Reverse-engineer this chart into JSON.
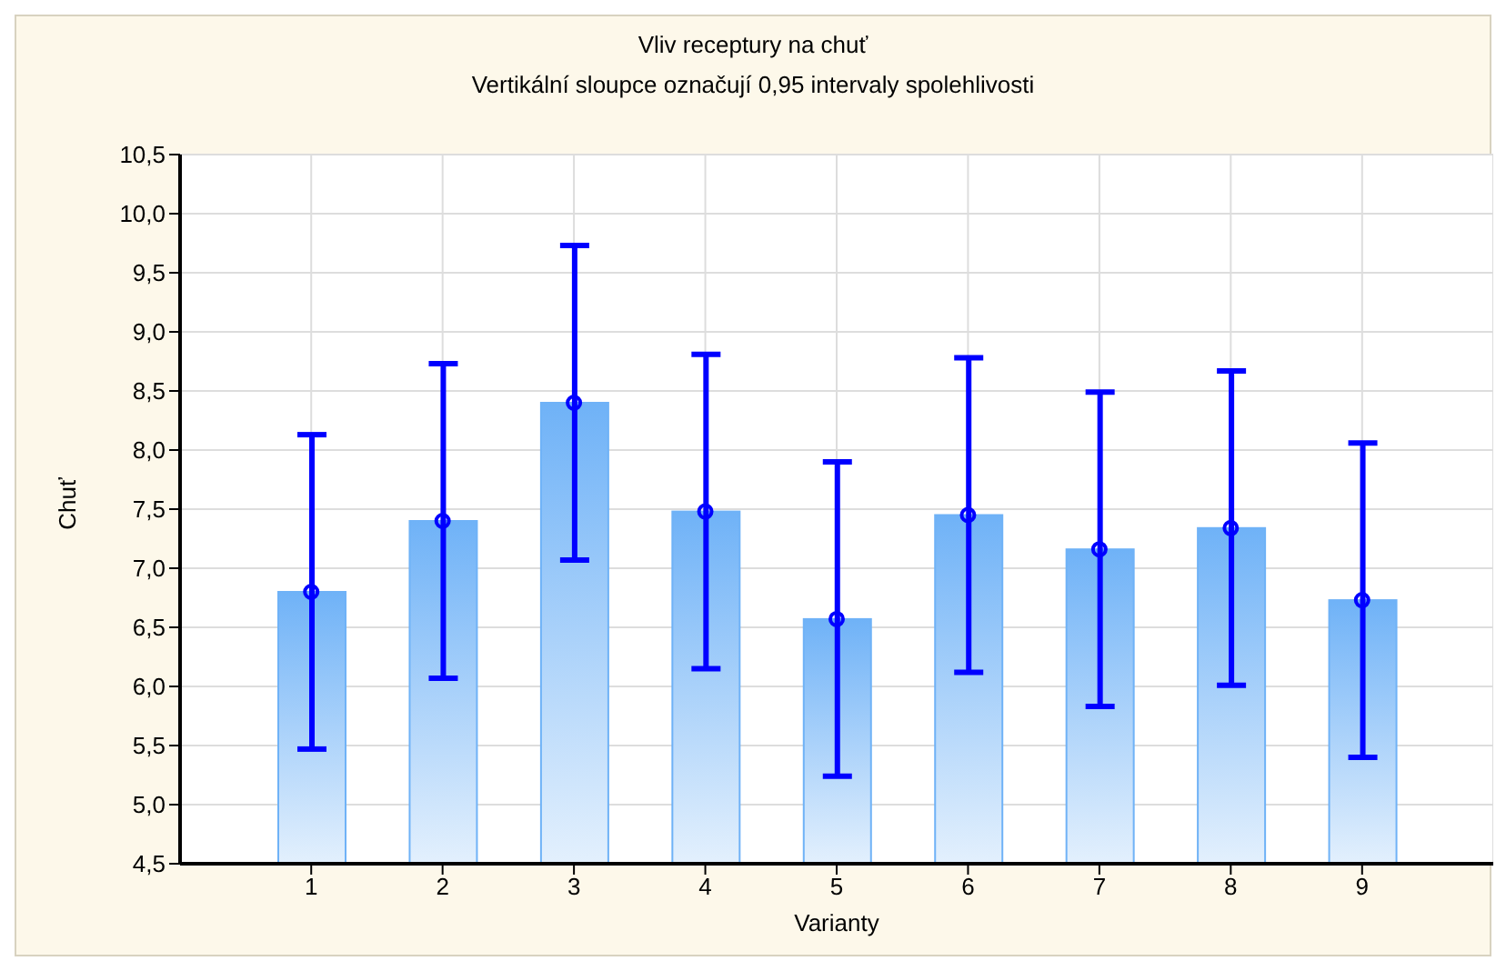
{
  "chart_data": {
    "type": "bar",
    "title": "Vliv receptury na chuť",
    "subtitle": "Vertikální sloupce označují 0,95 intervaly spolehlivosti",
    "xlabel": "Varianty",
    "ylabel": "Chuť",
    "categories": [
      "1",
      "2",
      "3",
      "4",
      "5",
      "6",
      "7",
      "8",
      "9"
    ],
    "series": [
      {
        "color": "#6fb2f7",
        "values": [
          6.8,
          7.4,
          8.4,
          7.48,
          6.57,
          7.45,
          7.16,
          7.34,
          6.73
        ],
        "errors": [
          1.33,
          1.33,
          1.33,
          1.33,
          1.33,
          1.33,
          1.33,
          1.33,
          1.33
        ]
      },
      {
        "type": "scatter",
        "color": "#0000ff",
        "x": [
          "1",
          "2",
          "3",
          "4",
          "5",
          "6",
          "7",
          "8",
          "9"
        ],
        "values": [
          6.8,
          7.4,
          8.4,
          7.48,
          6.57,
          7.45,
          7.16,
          7.34,
          6.73
        ]
      }
    ],
    "marker": "circle",
    "grid": true,
    "ylim": [
      4.5,
      10.5
    ],
    "yticks": [
      {
        "value": 4.5,
        "label": "4,5"
      },
      {
        "value": 5,
        "label": "5,0"
      },
      {
        "value": 5.5,
        "label": "5,5"
      },
      {
        "value": 6,
        "label": "6,0"
      },
      {
        "value": 6.5,
        "label": "6,5"
      },
      {
        "value": 7,
        "label": "7,0"
      },
      {
        "value": 7.5,
        "label": "7,5"
      },
      {
        "value": 8,
        "label": "8,0"
      },
      {
        "value": 8.5,
        "label": "8,5"
      },
      {
        "value": 9,
        "label": "9,0"
      },
      {
        "value": 9.5,
        "label": "9,5"
      },
      {
        "value": 10,
        "label": "10,0"
      },
      {
        "value": 10.5,
        "label": "10,5"
      }
    ]
  }
}
